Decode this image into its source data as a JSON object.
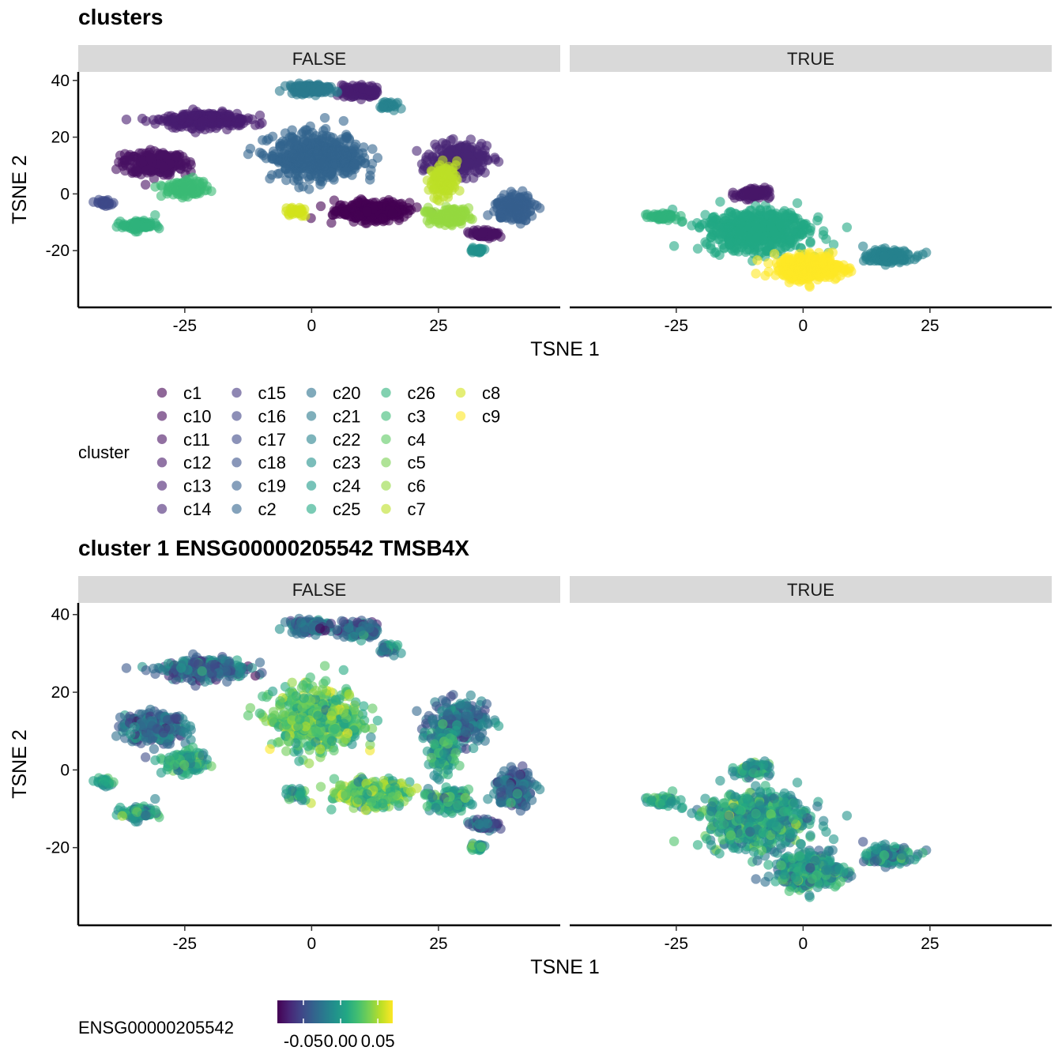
{
  "chart_data": [
    {
      "type": "scatter",
      "title": "clusters",
      "facets": [
        "FALSE",
        "TRUE"
      ],
      "xlabel": "TSNE 1",
      "ylabel": "TSNE 2",
      "xticks": [
        -25,
        0,
        25
      ],
      "yticks": [
        40,
        20,
        0,
        -20
      ],
      "xlim": [
        -46,
        49
      ],
      "ylim": [
        -40,
        43
      ],
      "legend": {
        "title": "cluster",
        "placement": "bottom",
        "entries": [
          "c1",
          "c10",
          "c11",
          "c12",
          "c13",
          "c14",
          "c15",
          "c16",
          "c17",
          "c18",
          "c19",
          "c2",
          "c20",
          "c21",
          "c22",
          "c23",
          "c24",
          "c25",
          "c26",
          "c3",
          "c4",
          "c5",
          "c6",
          "c7",
          "c8",
          "c9"
        ],
        "colors": [
          "#440154",
          "#46085c",
          "#471063",
          "#481769",
          "#481d6f",
          "#472575",
          "#453781",
          "#414487",
          "#3e4a89",
          "#3b528b",
          "#355f8d",
          "#32648e",
          "#2c728e",
          "#297a8e",
          "#26828e",
          "#21918c",
          "#1e9b8a",
          "#22a884",
          "#2eb37c",
          "#3bbb75",
          "#5ec962",
          "#7ad151",
          "#95d840",
          "#bddf26",
          "#d2e21b",
          "#fde725"
        ]
      },
      "clusters": {
        "FALSE": [
          {
            "cluster": "c1",
            "cx": 12,
            "cy": -6,
            "sx": 6.5,
            "sy": 3.0,
            "n": 320
          },
          {
            "cluster": "c11",
            "cx": -31,
            "cy": 11,
            "sx": 5.5,
            "sy": 3.5,
            "n": 260
          },
          {
            "cluster": "c13",
            "cx": -21,
            "cy": 26,
            "sx": 7.5,
            "sy": 2.5,
            "n": 260
          },
          {
            "cluster": "c14",
            "cx": 29,
            "cy": 12,
            "sx": 5.0,
            "sy": 4.5,
            "n": 240
          },
          {
            "cluster": "c13",
            "cx": 10,
            "cy": 36,
            "sx": 3.5,
            "sy": 2.0,
            "n": 120
          },
          {
            "cluster": "c2",
            "cx": 1,
            "cy": 13,
            "sx": 8.0,
            "sy": 7.0,
            "n": 520
          },
          {
            "cluster": "c21",
            "cx": 0,
            "cy": 37,
            "sx": 4.0,
            "sy": 1.5,
            "n": 140
          },
          {
            "cluster": "c19",
            "cx": 40,
            "cy": -5,
            "sx": 3.5,
            "sy": 4.0,
            "n": 160
          },
          {
            "cluster": "c22",
            "cx": 15,
            "cy": 31,
            "sx": 1.5,
            "sy": 1.0,
            "n": 30
          },
          {
            "cluster": "c3",
            "cx": -25,
            "cy": 2,
            "sx": 3.5,
            "sy": 2.5,
            "n": 140
          },
          {
            "cluster": "c26",
            "cx": -34,
            "cy": -11,
            "sx": 3.0,
            "sy": 1.5,
            "n": 90
          },
          {
            "cluster": "c6",
            "cx": 27,
            "cy": -8,
            "sx": 3.5,
            "sy": 2.5,
            "n": 130
          },
          {
            "cluster": "c7",
            "cx": 26,
            "cy": 5,
            "sx": 2.5,
            "sy": 5.0,
            "n": 110
          },
          {
            "cluster": "c11",
            "cx": 34,
            "cy": -14,
            "sx": 2.5,
            "sy": 1.2,
            "n": 60
          },
          {
            "cluster": "c23",
            "cx": 33,
            "cy": -20,
            "sx": 1.5,
            "sy": 1.0,
            "n": 30
          },
          {
            "cluster": "c17",
            "cx": -41,
            "cy": -3,
            "sx": 1.5,
            "sy": 1.0,
            "n": 25
          },
          {
            "cluster": "c8",
            "cx": -3,
            "cy": -6,
            "sx": 2.0,
            "sy": 1.5,
            "n": 30
          }
        ],
        "TRUE": [
          {
            "cluster": "c25",
            "cx": -9,
            "cy": -13,
            "sx": 9.0,
            "sy": 6.5,
            "n": 620
          },
          {
            "cluster": "c9",
            "cx": 1,
            "cy": -26,
            "sx": 6.0,
            "sy": 4.0,
            "n": 320
          },
          {
            "cluster": "c22",
            "cx": 17,
            "cy": -22,
            "sx": 4.0,
            "sy": 2.0,
            "n": 180
          },
          {
            "cluster": "c12",
            "cx": -10,
            "cy": 0,
            "sx": 3.0,
            "sy": 1.5,
            "n": 100
          },
          {
            "cluster": "c26",
            "cx": -28,
            "cy": -8,
            "sx": 3.0,
            "sy": 1.0,
            "n": 50
          }
        ]
      }
    },
    {
      "type": "scatter",
      "title": "cluster 1 ENSG00000205542 TMSB4X",
      "facets": [
        "FALSE",
        "TRUE"
      ],
      "xlabel": "TSNE 1",
      "ylabel": "TSNE 2",
      "xticks": [
        -25,
        0,
        25
      ],
      "yticks": [
        40,
        20,
        0,
        -20
      ],
      "xlim": [
        -46,
        49
      ],
      "ylim": [
        -40,
        43
      ],
      "legend": {
        "title": "ENSG00000205542",
        "placement": "bottom",
        "type": "colorbar",
        "ticks": [
          "-0.05",
          "0.00",
          "0.05"
        ],
        "tick_values": [
          -0.05,
          0.0,
          0.05
        ],
        "range": [
          -0.085,
          0.07
        ]
      }
    }
  ]
}
